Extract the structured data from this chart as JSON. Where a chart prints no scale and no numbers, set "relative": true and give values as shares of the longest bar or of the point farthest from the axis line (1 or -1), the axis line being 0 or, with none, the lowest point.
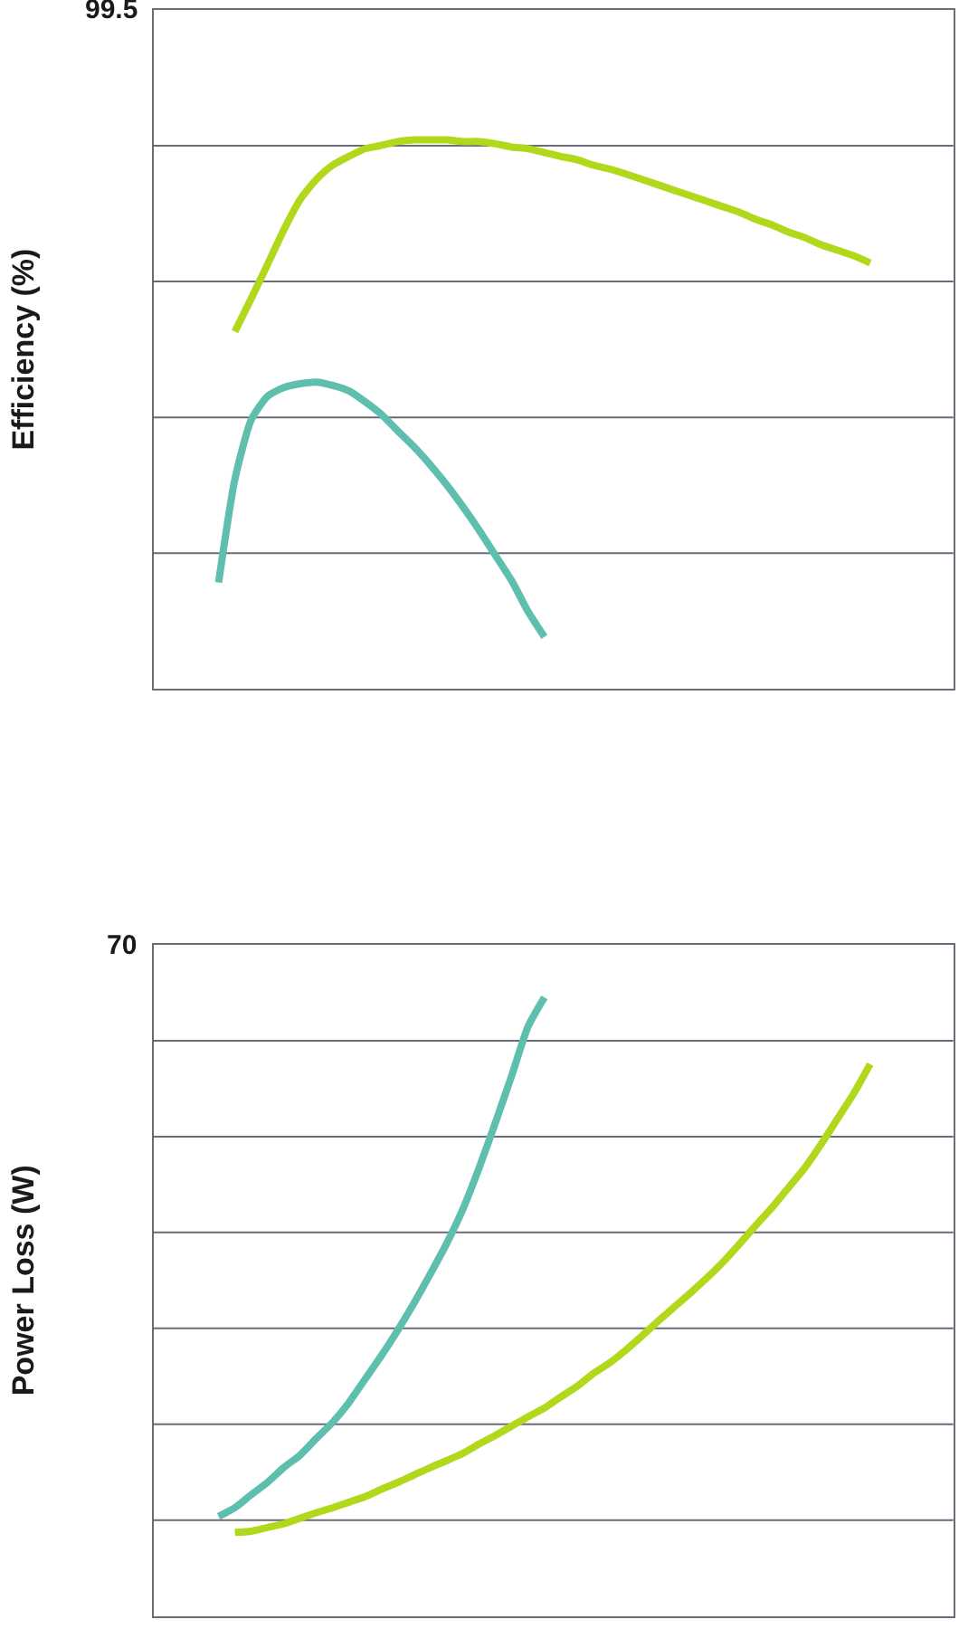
{
  "chart_data": [
    {
      "type": "line",
      "ylabel": "Efficiency (%)",
      "annotations": [
        "99.5"
      ],
      "relative": true,
      "grid": "y",
      "categories": [
        null,
        null,
        null,
        null,
        null,
        null,
        null,
        null,
        null,
        null,
        null,
        null,
        null,
        null,
        null,
        null,
        null,
        null,
        null,
        null,
        null,
        null,
        null,
        null,
        null,
        null,
        null,
        null,
        null,
        null,
        null,
        null,
        null,
        null,
        null,
        null,
        null,
        null,
        null,
        null,
        null,
        null,
        null,
        null,
        null,
        null,
        null,
        null,
        null
      ],
      "series": [
        {
          "color": "#5fbfae",
          "values": [
            null,
            null,
            null,
            null,
            0.194,
            0.382,
            0.49,
            0.533,
            0.549,
            0.556,
            0.559,
            0.553,
            0.543,
            0.523,
            0.5,
            0.47,
            0.441,
            0.408,
            0.372,
            0.332,
            0.289,
            0.243,
            0.197,
            0.141,
            0.095,
            null,
            null,
            null,
            null,
            null,
            null,
            null,
            null,
            null,
            null,
            null,
            null,
            null,
            null,
            null,
            null,
            null,
            null,
            null,
            null,
            null,
            null,
            null,
            null
          ]
        },
        {
          "color": "#b2d81c",
          "values": [
            null,
            null,
            null,
            null,
            null,
            0.651,
            0.711,
            0.773,
            0.836,
            0.891,
            0.928,
            0.954,
            0.97,
            0.984,
            0.99,
            0.997,
            1,
            1,
            1,
            0.997,
            0.997,
            0.993,
            0.987,
            0.984,
            0.977,
            0.97,
            0.964,
            0.954,
            0.947,
            0.938,
            0.928,
            0.918,
            0.908,
            0.898,
            0.888,
            0.878,
            0.868,
            0.855,
            0.845,
            0.832,
            0.822,
            0.809,
            0.799,
            0.789,
            0.776,
            null,
            null,
            null,
            null
          ]
        }
      ]
    },
    {
      "type": "line",
      "ylabel": "Power Loss (W)",
      "annotations": [
        "70"
      ],
      "relative": true,
      "grid": "y",
      "categories": [
        null,
        null,
        null,
        null,
        null,
        null,
        null,
        null,
        null,
        null,
        null,
        null,
        null,
        null,
        null,
        null,
        null,
        null,
        null,
        null,
        null,
        null,
        null,
        null,
        null,
        null,
        null,
        null,
        null,
        null,
        null,
        null,
        null,
        null,
        null,
        null,
        null,
        null,
        null,
        null,
        null,
        null,
        null,
        null,
        null,
        null,
        null,
        null,
        null
      ],
      "series": [
        {
          "color": "#5fbfae",
          "values": [
            null,
            null,
            null,
            null,
            0.161,
            0.175,
            0.196,
            0.216,
            0.24,
            0.26,
            0.287,
            0.313,
            0.345,
            0.383,
            0.421,
            0.462,
            0.506,
            0.553,
            0.602,
            0.658,
            0.725,
            0.798,
            0.874,
            0.953,
            1,
            null,
            null,
            null,
            null,
            null,
            null,
            null,
            null,
            null,
            null,
            null,
            null,
            null,
            null,
            null,
            null,
            null,
            null,
            null,
            null,
            null,
            null,
            null,
            null
          ]
        },
        {
          "color": "#b2d81c",
          "values": [
            null,
            null,
            null,
            null,
            null,
            0.135,
            0.137,
            0.143,
            0.149,
            0.158,
            0.167,
            0.175,
            0.184,
            0.193,
            0.205,
            0.216,
            0.228,
            0.24,
            0.251,
            0.263,
            0.278,
            0.292,
            0.307,
            0.322,
            0.336,
            0.354,
            0.371,
            0.392,
            0.409,
            0.43,
            0.453,
            0.477,
            0.5,
            0.523,
            0.547,
            0.573,
            0.602,
            0.632,
            0.661,
            0.693,
            0.725,
            0.763,
            0.804,
            0.845,
            0.892,
            null,
            null,
            null,
            null
          ]
        }
      ]
    }
  ]
}
